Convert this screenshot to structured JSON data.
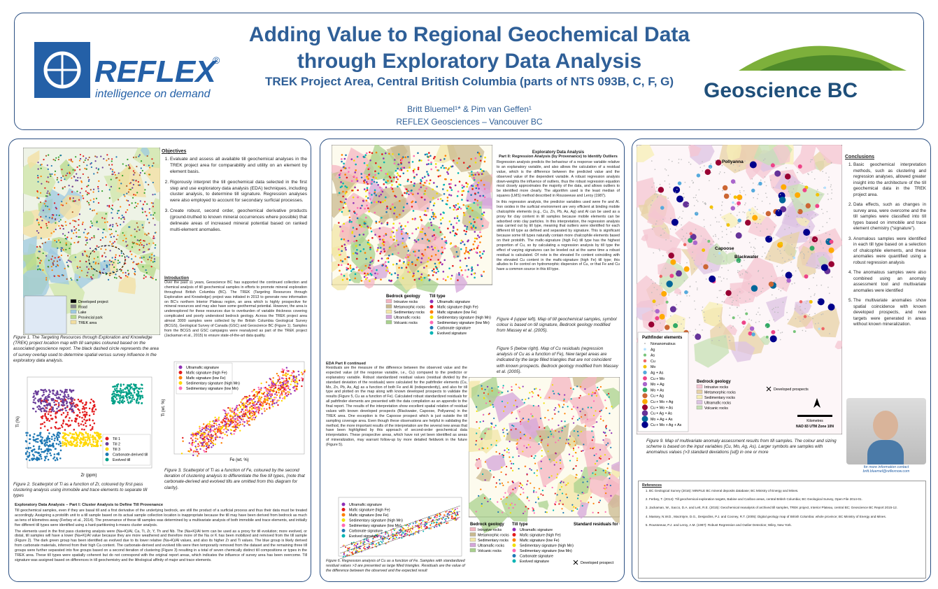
{
  "header": {
    "title_line1": "Adding Value to Regional Geochemical Data",
    "title_line2": "through Exploratory Data Analysis",
    "subtitle": "TREK Project Area, Central British Columbia (parts of NTS 093B, C, F, G)",
    "authors": "Britt Bluemel¹* & Pim van Geffen¹",
    "affiliation": "REFLEX Geosciences – Vancouver BC",
    "reflex_logo": "REFLEX",
    "reflex_tagline": "intelligence on demand",
    "partner_logo": "Geoscience BC"
  },
  "panel1": {
    "objectives_heading": "Objectives",
    "objectives": [
      "Evaluate and assess all available till geochemical analyses in the TREK project area for comparability and utility on an element by element basis.",
      "Rigorously interpret the till geochemical data selected in the first step and use exploratory data analysis (EDA) techniques, including cluster analysis, to determine till signature. Regression analyses were also employed to account for secondary surficial processes.",
      "Create robust, second order, geochemical derivative products (ground-truthed to known mineral occurrences where possible) that delineate areas of increased mineral potential based on ranked multi-element anomalies."
    ],
    "introduction_heading": "Introduction",
    "introduction": "Over the past 11 years, Geoscience BC has supported the continued collection and chemical analysis of till geochemical samples in efforts to promote mineral exploration throughout British Columbia (BC). The TREK (Targeting Resources through Exploration and Knowledge) project was initiated in 2013 to generate new information on BC's northern Interior Plateau region, an area which is highly prospective for mineral resources and may also have some geothermal potential. However, the area is underexplored for these resources due to overburden of variable thickness covering complicated and poorly understood bedrock geology. Across the TREK project area almost 3000 samples were collected by the British Columbia Geological Survey (BCGS), Geological Survey of Canada (GSC) and Geoscience BC (Figure 1). Samples from the BCGS and GSC campaigns were reanalyzed as part of the TREK project (Jackaman et al., 2015) to ensure state-of-the-art data quality.",
    "figure1_legend": [
      "Developed project",
      "Road",
      "Lake",
      "Provincial park",
      "TREK area"
    ],
    "figure1_caption": "Figure 1. The Targeting Resources through Exploration and Knowledge (TREK) project location map with till samples coloured based on the associated geoscience report. The black dashed circle represents the area of survey overlap used to determine spatial versus survey influence in the exploratory data analysis.",
    "figure2_legend": [
      "Till 1",
      "Till 2",
      "Till 3",
      "Carbonate-derived till",
      "Evolved till"
    ],
    "figure2_xlabel": "Zr (ppm)",
    "figure2_ylabel": "Ti (%)",
    "figure2_caption": "Figure 2. Scatterplot of Ti as a function of Zr, coloured by first pass clustering analysis using immobile and trace elements to separate till types",
    "figure3_legend": [
      "Ultramafic signature",
      "Mafic signature (high Fe)",
      "Mafic signature (low Fe)",
      "Sedimentary signature (high Mn)",
      "Sedimentary signature (low Mn)"
    ],
    "figure3_xlabel": "Fe (wt. %)",
    "figure3_ylabel": "Ti (wt. %)",
    "figure3_caption": "Figure 3. Scatterplot of Ti as a function of Fe, coloured by the second iteration of clustering analysis to differentiate the five till types, (note that carbonate-derived and evolved tills are omitted from this diagram for clarity).",
    "eda1_heading": "Exploratory Data Analysis – Part I: Cluster Analysis to Define Till Provenance",
    "eda1_paragraphs": [
      "Till geochemical samples, even if they are basal till and a first derivative of the underlying bedrock, are still the product of a surficial process and thus their data must be treated accordingly. Assigning a protolith unit to a till sample based on its actual sample collection location is inappropriate because the till may have been derived from bedrock as much as tens of kilometres away (Ferbey et al., 2014). The provenance of these till samples was determined by a multivariate analysis of both immobile and trace elements, and initially five different till types were identified using a hard-partitioning k-means cluster analysis.",
      "The elements used in the first pass clustering analysis were (Na+K)/Al, Ca, Ti, Zr, Y, Th and Nb. The (Na+K)/Al term can be used as a proxy for till evolution; more evolved, or distal, till samples will have a lower (Na+K)/Al value because they are more weathered and therefore more of the Na or K has been mobilized and removed from the till sample (Figure 2). The dark green group has been identified as evolved due to its lower relative (Na+K)/Al values, and also its higher Zr and Ti values. The blue group is likely derived from carbonate materials, inferred from their high Ca content. The carbonate-derived and evolved tills were then temporarily removed from the dataset and the remaining three till groups were further separated into five groups based on a second iteration of clustering (Figure 3) resulting in a total of seven chemically distinct till compositions or types in the TREK area. These till types were spatially coherent but do not correspond with the original report areas, which indicates the influence of survey area has been overcome. Till signature was assigned based on differences in till geochemistry and the lithological affinity of major and trace elements."
    ]
  },
  "panel2": {
    "eda2_heading": "Exploratory Data Analysis",
    "eda2_subheading": "Part II: Regression Analysis (by Provenance) to Identify Outliers",
    "eda2_paragraphs": [
      "Regression analysis predicts the behaviour of a response variable relative to an explanatory variable, and also allows the calculation of a residual value, which is the difference between the predicted value and the observed value of the dependent variable. A robust regression analysis down-weights the influence of outliers, thus the robust regression equation most closely approximates the majority of the data, and allows outliers to be identified more clearly. The algorithm used is the least median of squares (LMS) method described in Rousseeuw and Leroy (1987).",
      "In this regression analysis, the predictor variables used were Fe and Al. Iron oxides in the surficial environment are very efficient at binding mobile chalcophile elements (e.g., Cu, Zn, Pb, As, Ag) and Al can be used as a proxy for clay content in till samples because mobile elements can be adsorbed onto clay particles. In this interpretation, the regression analysis was carried out by till type, meaning that outliers were identified for each different till type as defined and separated by signature. This is significant because some till types naturally contain more chalcophile elements based on their protolith. The mafic-signature (high Fe) till type has the highest proportion of Cu, so by calculating a regression analysis by till type the effect of varying signatures can be leveled out at the same time a robust residual is calculated. Of note is the elevated Fe content coinciding with the elevated Cu content in the mafic-signature (high Fe) till type; this alludes to Fe control on hydromorphic dispersion of Cu, or that Fe and Cu have a common source in this till type."
    ],
    "figure4_caption": "Figure 4 (upper left). Map of till geochemical samples, symbol colour is based on till signature, Bedrock geology modified from Massey et al. (2005).",
    "figure5_caption": "Figure 5 (below right). Map of Cu residuals (regression analysis of Cu as a function of Fe), New target areas are indicated by the large filled triangles that are not coincident with known prospects. Bedrock geology modified from Massey et al. (2005).",
    "eda2c_heading": "EDA Part II continued",
    "eda2c_paragraph": "Residuals are the measure of the difference between the observed value and the expected value (of the response variable, i.e., Cu) compared to the predictor or explanatory variable. Robust standardized residual values (residual divided by the standard deviation of the residuals) were calculated for the pathfinder elements (Cu, Mo, Zn, Pb, As, Ag) as a function of both Fe and Al (independently), and also for till type and plotted on the map along with known developed prospects to validate the results (Figure 5, Cu as a function of Fe). Calculated robust standardized residuals for all pathfinder elements are presented with the data compilation as an appendix to the final report. The results of the interpretation show excellent spatial relation of residual values with known developed prospects (Blackwater, Capoose, Pollyanna) in the TREK area. One exception is the Capoose prospect which is just outside the till sampling coverage area. Even though these observations are helpful in validating the method, the more important results of the interpretation are the several new areas that have been highlighted by this approach of second-order geochemical data interpretation. These prospective areas, which have not yet been identified as areas of mineralization, may warrant follow-up by more detailed fieldwork in the future (Figure 5).",
    "bedrock_heading": "Bedrock geology",
    "bedrock": [
      "Intrusive rocks",
      "Metamorphic rocks",
      "Sedimentary rocks",
      "Ultramafic rocks",
      "Volcanic rocks"
    ],
    "till_heading": "Till type",
    "till_types": [
      "Ultramafic signature",
      "Mafic signature (high Fe)",
      "Mafic signature (low Fe)",
      "Sedimentary signature (high Mn)",
      "Sedimentary signature (low Mn)",
      "Carbonate signature",
      "Evolved signature"
    ],
    "residual_heading": "Standard residuals for Cu",
    "developed": "Developed prospect",
    "figure6_caption": "Figure 6. Regression analysis of Cu as a function of Fe. Samples with standardized residual values >3 are presented as large filled triangles. Residuals are the value of the difference between the observed and the expected result"
  },
  "panel3": {
    "conclusions_heading": "Conclusions",
    "conclusions": [
      "Basic geochemical interpretation methods, such as clustering and regression analyses, allowed greater insight into the architecture of the till geochemical data in the TREK project area.",
      "Data effects, such as changes in survey area, were overcome and the till samples were classified into till types based on immobile and trace element chemistry (“signature”).",
      "Anomalous samples were identified in each till type based on a selection of chalcophile elements, and these anomalies were quantified using a robust regression analysis",
      "The anomalous samples were also combined using an anomaly assessment tool and multivariate anomalies were identified",
      "The multivariate anomalies show spatial coincidence with known developed prospects, and new targets were generated in areas without known mineralization."
    ],
    "places": [
      "Pollyanna",
      "Capoose",
      "Blackwater"
    ],
    "pathfinder_heading": "Pathfinder elements",
    "pathfinder": [
      "Nonanomalous",
      "Ag",
      "As",
      "Cu",
      "Mo",
      "Ag + As",
      "Cu + Mo",
      "Mo + Ag",
      "Mo + As",
      "Cu + Ag",
      "Cu + Mo + Ag",
      "Cu + Mo + As",
      "Cu + Ag + As",
      "Mo + Ag + As",
      "Cu + Mo + Ag + As"
    ],
    "bedrock_heading": "Bedrock geology",
    "bedrock": [
      "Intrusive rocks",
      "Metamorphic rocks",
      "Sedimentary rocks",
      "Ultramafic rocks",
      "Volcanic rocks"
    ],
    "developed": "Developed prospects",
    "scale_unit": "Kilometres",
    "projection": "NAD 83 UTM Zone 10N",
    "figure9_caption": "Figure 9. Map of multivariate anomaly assessment results from till samples. The colour and sizing scheme is based on the input variables (Cu, Mo, Ag, As). Larger symbols are samples with anomalous values (>3 standard deviations [sd]) in one or more",
    "contact_line1": "for more information contact",
    "contact_line2": "britt.bluemel@reflexnow.com",
    "references_heading": "References",
    "references": [
      "BC Geological Survey (2016): MINFILE BC mineral deposits database; BC Ministry of Energy and Mines.",
      "Ferbey, T. (2014): Till geochemical exploration targets, Babine and Cariboo areas, central British Columbia; BC Geological Survey, Open File 2014-01.",
      "Jackaman, W., Sacco, D.A. and Lett, R.E. (2015): Geochemical reanalysis of archived till samples, TREK project, Interior Plateau, central BC; Geoscience BC Report 2015-12.",
      "Massey, N.W.D., MacIntyre, D.G., Desjardins, P.J. and Cooney, R.T. (2005): Digital geology map of British Columbia: whole province; BC Ministry of Energy and Mines.",
      "Rousseeuw, P.J. and Leroy, A.M. (1987): Robust Regression and Outlier Detection; Wiley, New York."
    ]
  }
}
